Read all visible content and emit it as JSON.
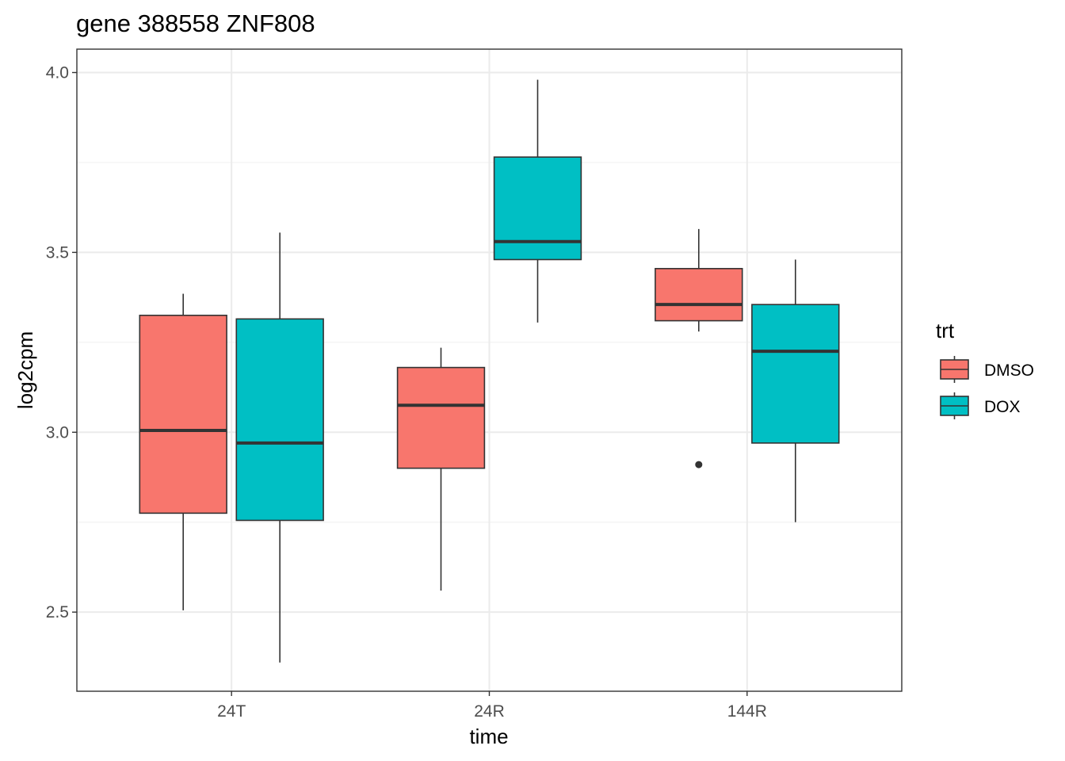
{
  "chart_data": {
    "type": "boxplot",
    "title": "gene 388558 ZNF808",
    "xlabel": "time",
    "ylabel": "log2cpm",
    "categories": [
      "24T",
      "24R",
      "144R"
    ],
    "ylim": [
      2.28,
      4.065
    ],
    "yticks": [
      2.5,
      3.0,
      3.5,
      4.0
    ],
    "ytick_labels": [
      "2.5",
      "3.0",
      "3.5",
      "4.0"
    ],
    "grid": true,
    "legend": {
      "title": "trt",
      "position": "right"
    },
    "series": [
      {
        "name": "DMSO",
        "color": "#F8766D",
        "boxes": [
          {
            "category": "24T",
            "min": 2.505,
            "q1": 2.775,
            "median": 3.005,
            "q3": 3.325,
            "max": 3.385,
            "outliers": []
          },
          {
            "category": "24R",
            "min": 2.56,
            "q1": 2.9,
            "median": 3.075,
            "q3": 3.18,
            "max": 3.235,
            "outliers": []
          },
          {
            "category": "144R",
            "min": 3.28,
            "q1": 3.31,
            "median": 3.355,
            "q3": 3.455,
            "max": 3.565,
            "outliers": [
              2.91
            ]
          }
        ]
      },
      {
        "name": "DOX",
        "color": "#00BFC4",
        "boxes": [
          {
            "category": "24T",
            "min": 2.36,
            "q1": 2.755,
            "median": 2.97,
            "q3": 3.315,
            "max": 3.555,
            "outliers": []
          },
          {
            "category": "24R",
            "min": 3.305,
            "q1": 3.48,
            "median": 3.53,
            "q3": 3.765,
            "max": 3.98,
            "outliers": []
          },
          {
            "category": "144R",
            "min": 2.75,
            "q1": 2.97,
            "median": 3.225,
            "q3": 3.355,
            "max": 3.48,
            "outliers": []
          }
        ]
      }
    ]
  }
}
